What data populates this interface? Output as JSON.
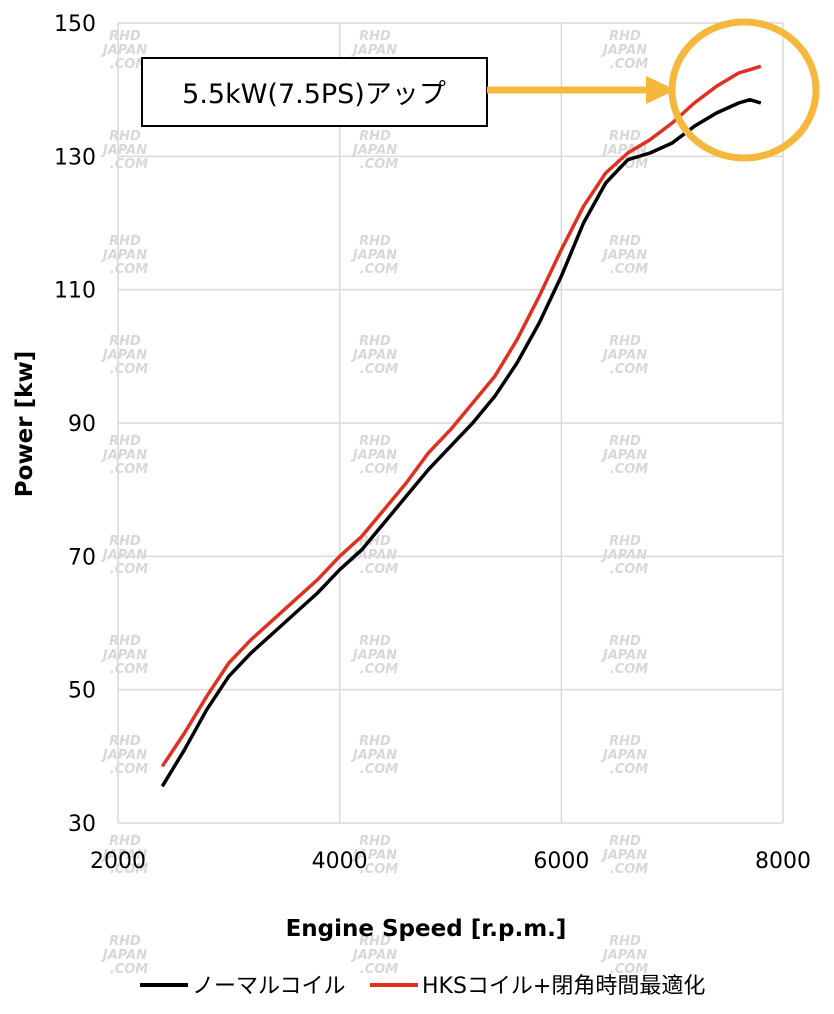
{
  "chart_data": {
    "type": "line",
    "xlabel": "Engine Speed [r.p.m.]",
    "ylabel": "Power [kw]",
    "xlim": [
      2000,
      8000
    ],
    "ylim": [
      30,
      150
    ],
    "xticks": [
      "2000",
      "4000",
      "6000",
      "8000"
    ],
    "yticks": [
      "30",
      "50",
      "70",
      "90",
      "110",
      "130",
      "150"
    ],
    "grid": true,
    "legend_position": "bottom",
    "series": [
      {
        "name": "ノーマルコイル",
        "color": "#000000",
        "x": [
          2400,
          2600,
          2800,
          3000,
          3200,
          3400,
          3600,
          3800,
          4000,
          4200,
          4400,
          4600,
          4800,
          5000,
          5200,
          5400,
          5600,
          5800,
          6000,
          6200,
          6400,
          6600,
          6800,
          7000,
          7200,
          7400,
          7600,
          7700,
          7800
        ],
        "y": [
          35.5,
          41,
          47,
          52,
          55.5,
          58.5,
          61.5,
          64.5,
          68,
          71,
          75,
          79,
          83,
          86.5,
          90,
          94,
          99,
          105,
          112,
          120,
          126,
          129.5,
          130.5,
          132,
          134.5,
          136.5,
          138,
          138.5,
          138
        ]
      },
      {
        "name": "HKSコイル+閉角時間最適化",
        "color": "#e03020",
        "x": [
          2400,
          2600,
          2800,
          3000,
          3200,
          3400,
          3600,
          3800,
          4000,
          4200,
          4400,
          4600,
          4800,
          5000,
          5200,
          5400,
          5600,
          5800,
          6000,
          6200,
          6400,
          6600,
          6800,
          7000,
          7200,
          7400,
          7600,
          7700,
          7800
        ],
        "y": [
          38.5,
          43.5,
          49,
          54,
          57.5,
          60.5,
          63.5,
          66.5,
          70,
          73,
          77,
          81,
          85.5,
          89,
          93,
          97,
          102.5,
          109,
          116,
          122.5,
          127.5,
          130.5,
          132.5,
          135,
          138,
          140.5,
          142.5,
          143,
          143.5
        ]
      }
    ],
    "annotation": {
      "text": "5.5kW(7.5PS)アップ",
      "arrow_color": "#f5b83d",
      "highlight_color": "#f5b83d"
    },
    "watermark": [
      "RHD",
      "JAPAN",
      ".COM"
    ]
  }
}
